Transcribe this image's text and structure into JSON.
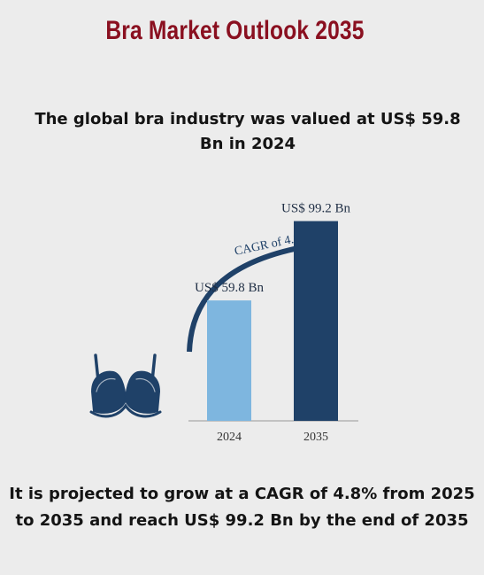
{
  "title": "Bra Market Outlook 2035",
  "intro_text": "The global bra industry was valued at US$ 59.8 Bn in 2024",
  "outro_text": "It is projected to grow at a CAGR of 4.8% from 2025 to 2035 and reach US$ 99.2 Bn by the end of 2035",
  "icon": "bra-icon",
  "colors": {
    "title": "#8a1020",
    "bar_2024": "#7eb6df",
    "bar_2035": "#1f4168",
    "arrow": "#1f4168",
    "icon": "#1f4168"
  },
  "chart_data": {
    "type": "bar",
    "title": "",
    "xlabel": "",
    "ylabel": "",
    "categories": [
      "2024",
      "2035"
    ],
    "values": [
      59.8,
      99.2
    ],
    "data_labels": [
      "US$ 59.8 Bn",
      "US$ 99.2 Bn"
    ],
    "unit": "US$ Bn",
    "ylim": [
      0,
      110
    ],
    "grid": false,
    "annotation": "CAGR of 4.8%"
  }
}
